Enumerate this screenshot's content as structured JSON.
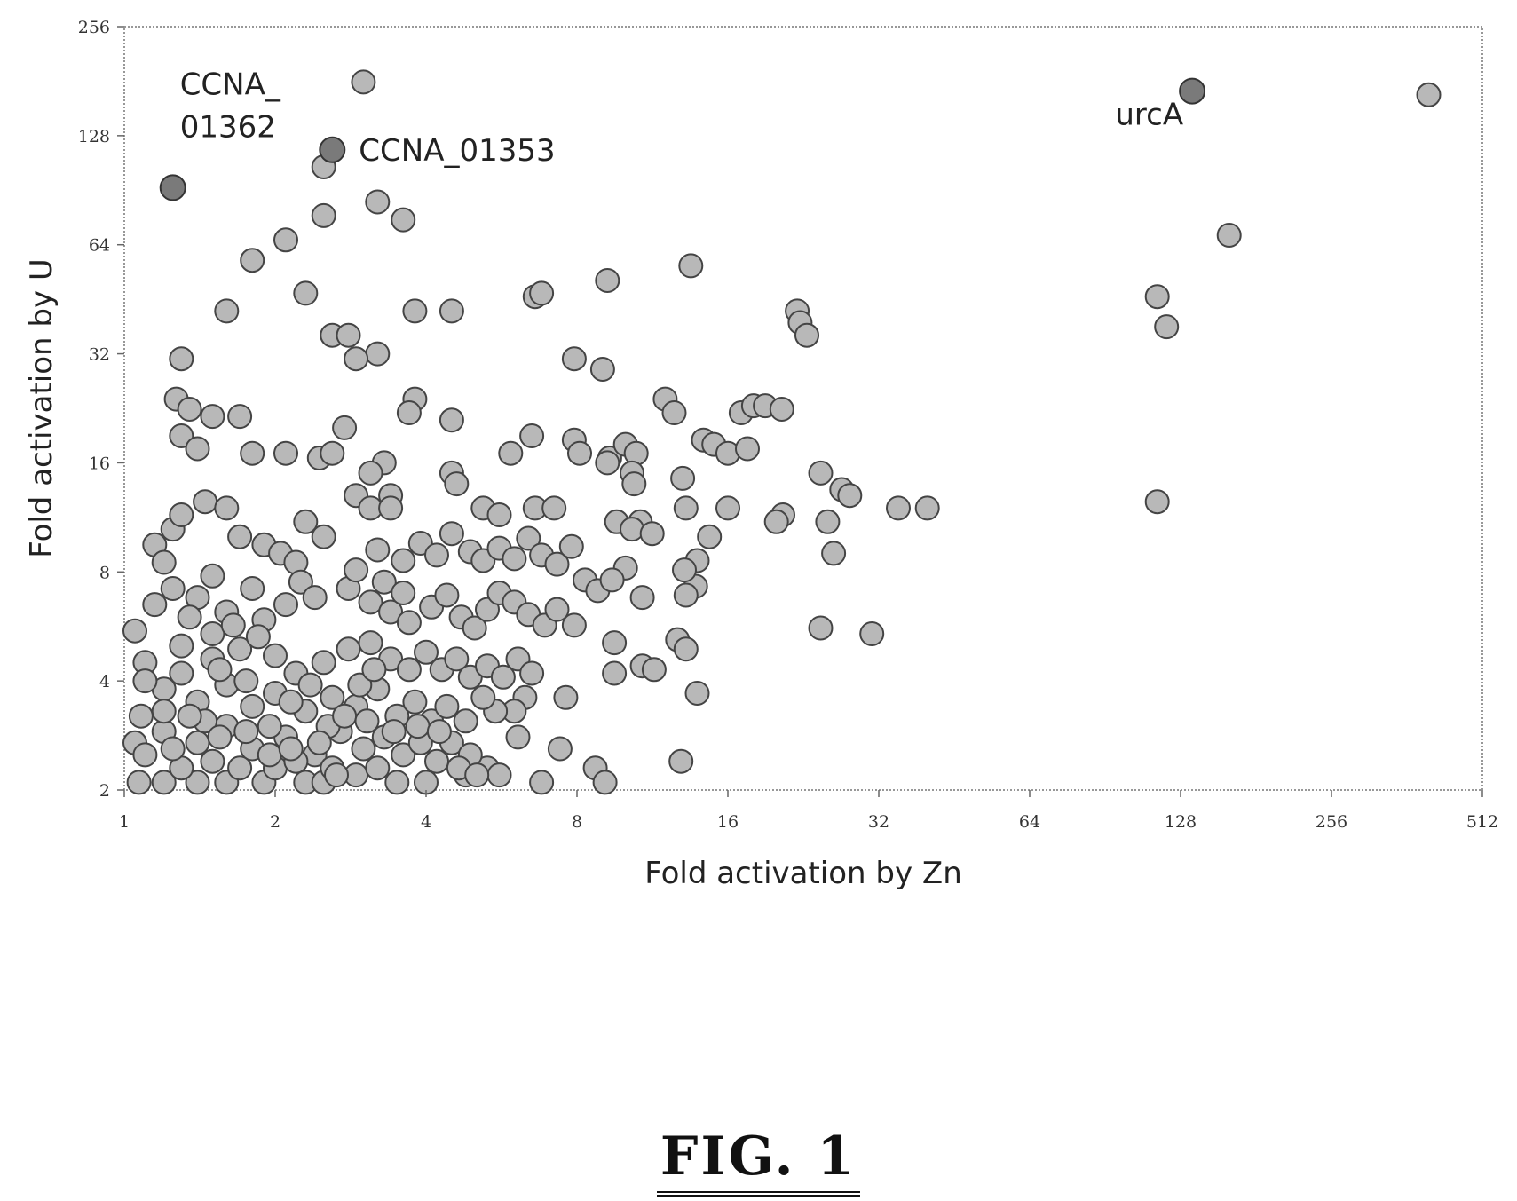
{
  "figure_label": "FIG. 1",
  "chart_data": {
    "type": "scatter",
    "title": "",
    "xlabel": "Fold activation by Zn",
    "ylabel": "Fold activation by U",
    "x_scale": "log2",
    "y_scale": "log2",
    "xlim": [
      1,
      512
    ],
    "ylim": [
      2,
      256
    ],
    "x_ticks": [
      "1",
      "2",
      "4",
      "8",
      "16",
      "32",
      "64",
      "128",
      "256",
      "512"
    ],
    "y_ticks": [
      "2",
      "4",
      "8",
      "16",
      "32",
      "64",
      "128",
      "256"
    ],
    "grid": false,
    "legend": "none",
    "colors": {
      "point": "#b8b8b8",
      "highlight": "#7a7a7a",
      "edge": "#444444"
    },
    "highlighted": [
      {
        "label": "CCNA_\n01362",
        "x": 1.25,
        "y": 92
      },
      {
        "label": "CCNA_01353",
        "x": 2.6,
        "y": 117
      },
      {
        "label": "urcA",
        "x": 135,
        "y": 170
      }
    ],
    "points": [
      [
        3.0,
        180
      ],
      [
        400,
        166
      ],
      [
        160,
        68
      ],
      [
        1.25,
        92
      ],
      [
        2.6,
        117
      ],
      [
        2.5,
        105
      ],
      [
        3.2,
        84
      ],
      [
        3.6,
        75
      ],
      [
        2.5,
        77
      ],
      [
        2.1,
        66
      ],
      [
        1.8,
        58
      ],
      [
        13.5,
        56
      ],
      [
        9.2,
        51
      ],
      [
        6.6,
        46
      ],
      [
        6.8,
        47
      ],
      [
        2.3,
        47
      ],
      [
        1.6,
        42
      ],
      [
        3.8,
        42
      ],
      [
        4.5,
        42
      ],
      [
        22,
        42
      ],
      [
        22.3,
        39
      ],
      [
        23,
        36
      ],
      [
        115,
        46
      ],
      [
        120,
        38
      ],
      [
        2.6,
        36
      ],
      [
        2.8,
        36
      ],
      [
        3.2,
        32
      ],
      [
        2.9,
        31
      ],
      [
        1.3,
        31
      ],
      [
        7.9,
        31
      ],
      [
        9,
        29
      ],
      [
        1.27,
        24
      ],
      [
        1.35,
        22.5
      ],
      [
        1.5,
        21.5
      ],
      [
        1.7,
        21.5
      ],
      [
        3.8,
        24
      ],
      [
        3.7,
        22
      ],
      [
        4.5,
        21
      ],
      [
        2.75,
        20
      ],
      [
        12,
        24
      ],
      [
        12.5,
        22
      ],
      [
        17,
        22
      ],
      [
        18,
        23
      ],
      [
        19,
        23
      ],
      [
        20.5,
        22.5
      ],
      [
        1.3,
        19
      ],
      [
        1.4,
        17.5
      ],
      [
        1.8,
        17
      ],
      [
        2.1,
        17
      ],
      [
        2.45,
        16.5
      ],
      [
        2.6,
        17
      ],
      [
        3.3,
        16
      ],
      [
        3.1,
        15
      ],
      [
        6.5,
        19
      ],
      [
        5.9,
        17
      ],
      [
        7.9,
        18.5
      ],
      [
        8.1,
        17
      ],
      [
        9.3,
        16.5
      ],
      [
        10,
        18
      ],
      [
        10.5,
        17
      ],
      [
        14.3,
        18.5
      ],
      [
        15,
        18
      ],
      [
        16,
        17
      ],
      [
        17.5,
        17.5
      ],
      [
        9.2,
        16
      ],
      [
        3.4,
        13
      ],
      [
        4.5,
        15
      ],
      [
        4.6,
        14
      ],
      [
        10.3,
        15
      ],
      [
        10.4,
        14
      ],
      [
        13,
        14.5
      ],
      [
        27,
        13.5
      ],
      [
        13.2,
        12
      ],
      [
        16,
        12
      ],
      [
        20.6,
        11.5
      ],
      [
        20,
        11
      ],
      [
        24.5,
        15
      ],
      [
        25.3,
        11
      ],
      [
        28,
        13
      ],
      [
        35,
        12
      ],
      [
        40,
        12
      ],
      [
        115,
        12.5
      ],
      [
        2.9,
        13
      ],
      [
        3.1,
        12
      ],
      [
        3.4,
        12
      ],
      [
        5.2,
        12
      ],
      [
        5.6,
        11.5
      ],
      [
        6.6,
        12
      ],
      [
        7.2,
        12
      ],
      [
        2.3,
        11
      ],
      [
        2.5,
        10
      ],
      [
        9.6,
        11
      ],
      [
        10.7,
        11
      ],
      [
        10.3,
        10.5
      ],
      [
        11.3,
        10.2
      ],
      [
        14.7,
        10
      ],
      [
        26,
        9
      ],
      [
        24.5,
        5.6
      ],
      [
        31,
        5.4
      ],
      [
        12.7,
        5.2
      ],
      [
        13.2,
        4.9
      ],
      [
        13.9,
        3.7
      ],
      [
        12.9,
        2.4
      ],
      [
        13.9,
        8.6
      ],
      [
        13.8,
        7.3
      ],
      [
        13.2,
        6.9
      ],
      [
        13.1,
        8.1
      ],
      [
        10,
        8.2
      ],
      [
        10.8,
        6.8
      ],
      [
        10.8,
        4.4
      ],
      [
        11.4,
        4.3
      ],
      [
        9.5,
        5.1
      ],
      [
        9.5,
        4.2
      ],
      [
        7.9,
        5.7
      ],
      [
        7.4,
        2.6
      ],
      [
        8.7,
        2.3
      ],
      [
        9.1,
        2.1
      ],
      [
        6.8,
        2.1
      ],
      [
        7.6,
        3.6
      ],
      [
        6.3,
        3.6
      ],
      [
        6.0,
        3.3
      ],
      [
        5.5,
        3.3
      ],
      [
        6.1,
        2.8
      ],
      [
        4.8,
        2.2
      ],
      [
        5.3,
        2.3
      ],
      [
        5.6,
        2.2
      ],
      [
        4.0,
        2.1
      ],
      [
        3.5,
        2.1
      ],
      [
        1.05,
        5.5
      ],
      [
        1.1,
        4.5
      ],
      [
        1.08,
        3.2
      ],
      [
        1.05,
        2.7
      ],
      [
        1.07,
        2.1
      ],
      [
        1.2,
        2.1
      ],
      [
        1.4,
        2.1
      ],
      [
        1.6,
        2.1
      ],
      [
        1.9,
        2.1
      ],
      [
        2.3,
        2.1
      ],
      [
        2.5,
        2.1
      ],
      [
        1.15,
        9.5
      ],
      [
        1.2,
        8.5
      ],
      [
        1.25,
        10.5
      ],
      [
        1.3,
        11.5
      ],
      [
        1.45,
        12.5
      ],
      [
        1.6,
        12
      ],
      [
        1.7,
        10
      ],
      [
        1.9,
        9.5
      ],
      [
        2.05,
        9
      ],
      [
        2.2,
        8.5
      ],
      [
        2.25,
        7.5
      ],
      [
        1.5,
        7.8
      ],
      [
        1.8,
        7.2
      ],
      [
        1.4,
        6.8
      ],
      [
        1.6,
        6.2
      ],
      [
        1.9,
        5.9
      ],
      [
        2.1,
        6.5
      ],
      [
        2.4,
        6.8
      ],
      [
        2.8,
        7.2
      ],
      [
        3.1,
        6.6
      ],
      [
        3.4,
        6.2
      ],
      [
        3.7,
        5.8
      ],
      [
        4.1,
        6.4
      ],
      [
        4.4,
        6.9
      ],
      [
        4.7,
        6.0
      ],
      [
        5.0,
        5.6
      ],
      [
        5.3,
        6.3
      ],
      [
        5.6,
        7.0
      ],
      [
        6.0,
        6.6
      ],
      [
        6.4,
        6.1
      ],
      [
        6.9,
        5.7
      ],
      [
        7.3,
        6.3
      ],
      [
        3.2,
        9.2
      ],
      [
        3.6,
        8.6
      ],
      [
        3.9,
        9.6
      ],
      [
        4.2,
        8.9
      ],
      [
        4.5,
        10.2
      ],
      [
        4.9,
        9.1
      ],
      [
        5.2,
        8.6
      ],
      [
        5.6,
        9.3
      ],
      [
        6.0,
        8.7
      ],
      [
        6.4,
        9.9
      ],
      [
        6.8,
        8.9
      ],
      [
        7.3,
        8.4
      ],
      [
        7.8,
        9.4
      ],
      [
        8.3,
        7.6
      ],
      [
        8.8,
        7.1
      ],
      [
        9.4,
        7.6
      ],
      [
        2.9,
        8.1
      ],
      [
        3.3,
        7.5
      ],
      [
        3.6,
        7.0
      ],
      [
        1.3,
        5.0
      ],
      [
        1.5,
        4.6
      ],
      [
        1.7,
        4.9
      ],
      [
        2.0,
        4.7
      ],
      [
        2.2,
        4.2
      ],
      [
        2.5,
        4.5
      ],
      [
        2.8,
        4.9
      ],
      [
        3.1,
        5.1
      ],
      [
        3.4,
        4.6
      ],
      [
        3.7,
        4.3
      ],
      [
        4.0,
        4.8
      ],
      [
        4.3,
        4.3
      ],
      [
        4.6,
        4.6
      ],
      [
        4.9,
        4.1
      ],
      [
        5.3,
        4.4
      ],
      [
        5.7,
        4.1
      ],
      [
        6.1,
        4.6
      ],
      [
        6.5,
        4.2
      ],
      [
        1.2,
        3.8
      ],
      [
        1.4,
        3.5
      ],
      [
        1.6,
        3.9
      ],
      [
        1.8,
        3.4
      ],
      [
        2.0,
        3.7
      ],
      [
        2.3,
        3.3
      ],
      [
        2.6,
        3.6
      ],
      [
        2.9,
        3.4
      ],
      [
        3.2,
        3.8
      ],
      [
        3.5,
        3.2
      ],
      [
        3.8,
        3.5
      ],
      [
        4.1,
        3.1
      ],
      [
        4.4,
        3.4
      ],
      [
        4.8,
        3.1
      ],
      [
        5.2,
        3.6
      ],
      [
        1.2,
        2.9
      ],
      [
        1.4,
        2.7
      ],
      [
        1.6,
        3.0
      ],
      [
        1.8,
        2.6
      ],
      [
        2.1,
        2.8
      ],
      [
        2.4,
        2.5
      ],
      [
        2.7,
        2.9
      ],
      [
        3.0,
        2.6
      ],
      [
        3.3,
        2.8
      ],
      [
        3.6,
        2.5
      ],
      [
        3.9,
        2.7
      ],
      [
        4.2,
        2.4
      ],
      [
        4.5,
        2.7
      ],
      [
        4.9,
        2.5
      ],
      [
        1.3,
        2.3
      ],
      [
        1.5,
        2.4
      ],
      [
        1.7,
        2.3
      ],
      [
        2.0,
        2.3
      ],
      [
        2.2,
        2.4
      ],
      [
        2.6,
        2.3
      ],
      [
        2.9,
        2.2
      ],
      [
        3.2,
        2.3
      ],
      [
        1.15,
        6.5
      ],
      [
        1.25,
        7.2
      ],
      [
        1.35,
        6.0
      ],
      [
        1.5,
        5.4
      ],
      [
        1.65,
        5.7
      ],
      [
        1.85,
        5.3
      ],
      [
        1.1,
        4.0
      ],
      [
        1.2,
        3.3
      ],
      [
        1.3,
        4.2
      ],
      [
        1.45,
        3.1
      ],
      [
        1.55,
        4.3
      ],
      [
        1.75,
        4.0
      ],
      [
        1.95,
        3.0
      ],
      [
        2.15,
        3.5
      ],
      [
        2.35,
        3.9
      ],
      [
        2.55,
        3.0
      ],
      [
        2.75,
        3.2
      ],
      [
        2.95,
        3.9
      ],
      [
        3.15,
        4.3
      ],
      [
        1.1,
        2.5
      ],
      [
        1.25,
        2.6
      ],
      [
        1.35,
        3.2
      ],
      [
        1.55,
        2.8
      ],
      [
        1.75,
        2.9
      ],
      [
        1.95,
        2.5
      ],
      [
        2.15,
        2.6
      ],
      [
        2.45,
        2.7
      ],
      [
        2.65,
        2.2
      ],
      [
        3.05,
        3.1
      ],
      [
        3.45,
        2.9
      ],
      [
        3.85,
        3.0
      ],
      [
        4.25,
        2.9
      ],
      [
        4.65,
        2.3
      ],
      [
        5.05,
        2.2
      ]
    ]
  }
}
